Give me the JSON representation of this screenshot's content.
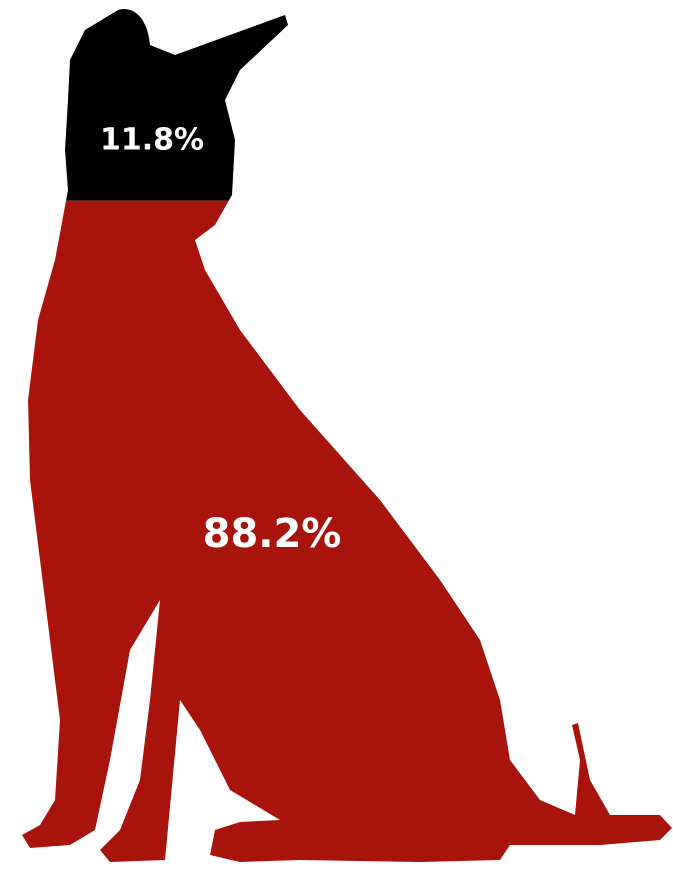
{
  "chart_data": {
    "type": "pictogram",
    "values": [
      11.8,
      88.2
    ],
    "value_labels": [
      "11.8%",
      "88.2%"
    ],
    "colors": [
      "#000000",
      "#a8140c"
    ]
  }
}
